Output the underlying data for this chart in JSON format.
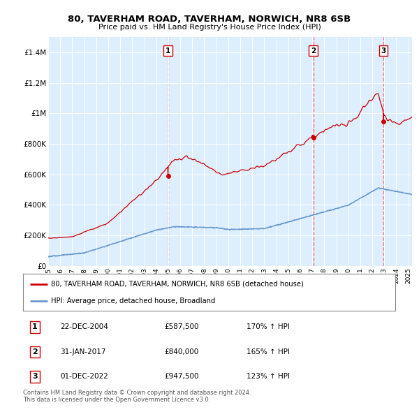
{
  "title": "80, TAVERHAM ROAD, TAVERHAM, NORWICH, NR8 6SB",
  "subtitle": "Price paid vs. HM Land Registry's House Price Index (HPI)",
  "legend_label_red": "80, TAVERHAM ROAD, TAVERHAM, NORWICH, NR8 6SB (detached house)",
  "legend_label_blue": "HPI: Average price, detached house, Broadland",
  "footer": "Contains HM Land Registry data © Crown copyright and database right 2024.\nThis data is licensed under the Open Government Licence v3.0.",
  "table": [
    {
      "num": "1",
      "date": "22-DEC-2004",
      "price": "£587,500",
      "hpi": "170% ↑ HPI"
    },
    {
      "num": "2",
      "date": "31-JAN-2017",
      "price": "£840,000",
      "hpi": "165% ↑ HPI"
    },
    {
      "num": "3",
      "date": "01-DEC-2022",
      "price": "£947,500",
      "hpi": "123% ↑ HPI"
    }
  ],
  "sale_dates": [
    2004.98,
    2017.08,
    2022.92
  ],
  "sale_prices": [
    587500,
    840000,
    947500
  ],
  "sale_labels": [
    "1",
    "2",
    "3"
  ],
  "ylim": [
    0,
    1500000
  ],
  "yticks": [
    0,
    200000,
    400000,
    600000,
    800000,
    1000000,
    1200000,
    1400000
  ],
  "ytick_labels": [
    "£0",
    "£200K",
    "£400K",
    "£600K",
    "£800K",
    "£1M",
    "£1.2M",
    "£1.4M"
  ],
  "vline_color": "#ff6666",
  "red_line_color": "#cc0000",
  "blue_line_color": "#6699cc",
  "plot_bg_color": "#ddeeff",
  "xlim_start": 1995,
  "xlim_end": 2025.3
}
